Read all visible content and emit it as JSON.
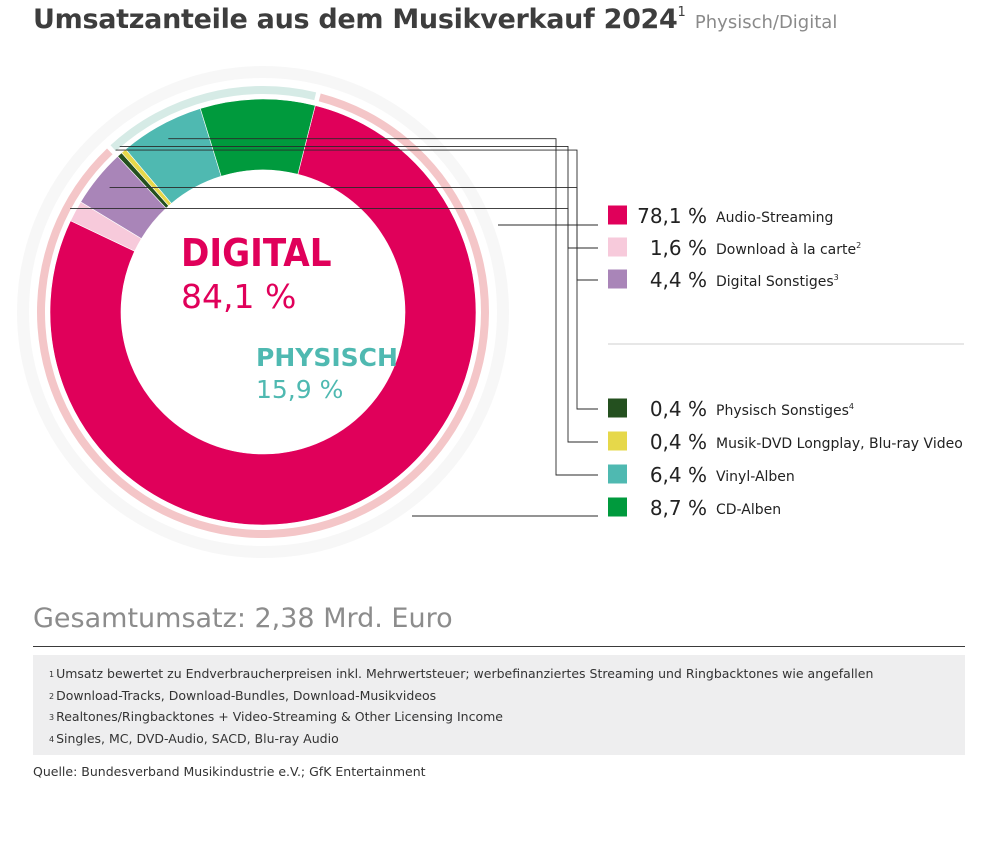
{
  "title": {
    "main": "Umsatzanteile aus dem Musikverkauf 2024",
    "footnote_ref": "1",
    "subtitle": "Physisch/Digital"
  },
  "chart_data": {
    "type": "pie",
    "title": "Umsatzanteile aus dem Musikverkauf 2024",
    "subtitle": "Physisch/Digital",
    "unit": "%",
    "groups": [
      {
        "name": "DIGITAL",
        "value_label": "84,1 %",
        "value": 84.1,
        "color": "#e0005a",
        "ring_color": "#f4c6c8"
      },
      {
        "name": "PHYSISCH",
        "value_label": "15,9 %",
        "value": 15.9,
        "color": "#4fb9b1",
        "ring_color": "#d6ebe6"
      }
    ],
    "segments": [
      {
        "name": "Audio-Streaming",
        "footnote": "",
        "value": 78.1,
        "value_label": "78,1 %",
        "group": "DIGITAL",
        "color": "#e0005a"
      },
      {
        "name": "Download à la carte",
        "footnote": "2",
        "value": 1.6,
        "value_label": "1,6 %",
        "group": "DIGITAL",
        "color": "#f7cadb"
      },
      {
        "name": "Digital Sonstiges",
        "footnote": "3",
        "value": 4.4,
        "value_label": "4,4 %",
        "group": "DIGITAL",
        "color": "#a985b8"
      },
      {
        "name": "Physisch Sonstiges",
        "footnote": "4",
        "value": 0.4,
        "value_label": "0,4 %",
        "group": "PHYSISCH",
        "color": "#24501f"
      },
      {
        "name": "Musik-DVD Longplay, Blu-ray Video",
        "footnote": "",
        "value": 0.4,
        "value_label": "0,4 %",
        "group": "PHYSISCH",
        "color": "#e6d84a"
      },
      {
        "name": "Vinyl-Alben",
        "footnote": "",
        "value": 6.4,
        "value_label": "6,4 %",
        "group": "PHYSISCH",
        "color": "#4fb9b1"
      },
      {
        "name": "CD-Alben",
        "footnote": "",
        "value": 8.7,
        "value_label": "8,7 %",
        "group": "PHYSISCH",
        "color": "#009a3d"
      }
    ]
  },
  "total": "Gesamtumsatz: 2,38 Mrd. Euro",
  "footnotes": [
    {
      "num": "1",
      "text": "Umsatz bewertet zu Endverbraucherpreisen inkl. Mehrwertsteuer; werbefinanziertes Streaming und Ringbacktones wie angefallen"
    },
    {
      "num": "2",
      "text": "Download-Tracks, Download-Bundles, Download-Musikvideos"
    },
    {
      "num": "3",
      "text": "Realtones/Ringbacktones + Video-Streaming & Other Licensing Income"
    },
    {
      "num": "4",
      "text": "Singles, MC, DVD-Audio, SACD, Blu-ray Audio"
    }
  ],
  "source": "Quelle: Bundesverband Musikindustrie e.V.; GfK Entertainment"
}
